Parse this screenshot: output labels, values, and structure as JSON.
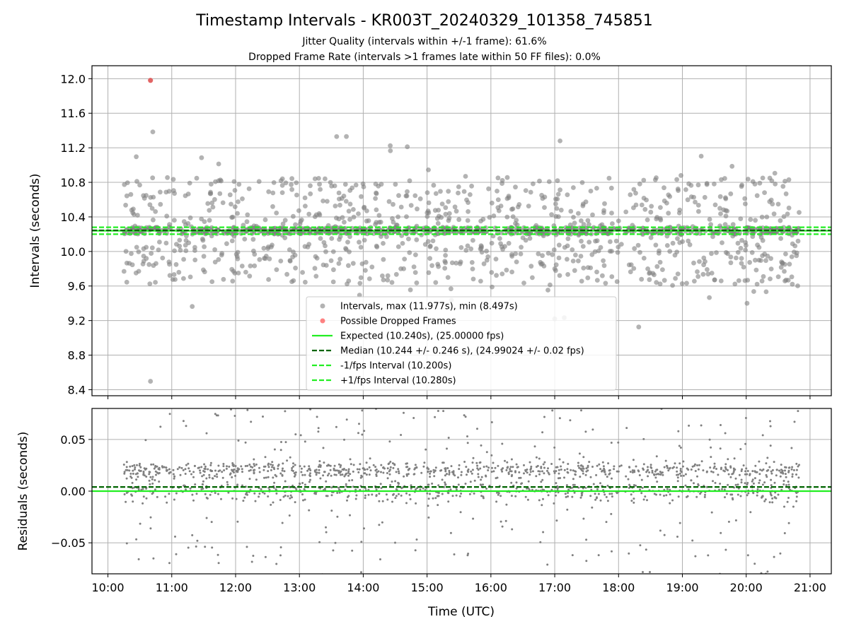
{
  "colors": {
    "intervals": "#808080",
    "dropped": "#ff3030",
    "expected": "#22ee22",
    "median": "#006400",
    "fps_bounds": "#22ee22",
    "grid": "#b0b0b0"
  },
  "chart_data": [
    {
      "type": "scatter",
      "title": "Timestamp Intervals - KR003T_20240329_101358_745851",
      "subtitle_lines": [
        "Jitter Quality (intervals within +/-1 frame): 61.6%",
        "Dropped Frame Rate (intervals >1 frames late within 50 FF files): 0.0%"
      ],
      "xlabel": "",
      "ylabel": "Intervals (seconds)",
      "x_range": [
        "09:45",
        "21:20"
      ],
      "ylim": [
        8.33,
        12.15
      ],
      "y_ticks": [
        "8.4",
        "8.8",
        "9.2",
        "9.6",
        "10.0",
        "10.4",
        "10.8",
        "11.2",
        "11.6",
        "12.0"
      ],
      "y_tick_values": [
        8.4,
        8.8,
        9.2,
        9.6,
        10.0,
        10.4,
        10.8,
        11.2,
        11.6,
        12.0
      ],
      "grid": true,
      "legend_position": "lower-center",
      "series": [
        {
          "name": "Intervals, max (11.977s), min (8.497s)",
          "kind": "points",
          "x_start": "10:15",
          "x_end": "20:50",
          "typical_center": 10.24,
          "typical_spread": 0.246,
          "count_approx": 1550
        },
        {
          "name": "Possible Dropped Frames",
          "kind": "points",
          "points": [
            {
              "x": "10:40",
              "y": 11.98
            }
          ]
        },
        {
          "name": "Expected (10.240s), (25.00000 fps)",
          "kind": "hline",
          "y": 10.24
        },
        {
          "name": "Median (10.244 +/- 0.246 s), (24.99024 +/- 0.02 fps)",
          "kind": "hline",
          "y": 10.244
        },
        {
          "name": "-1/fps Interval (10.200s)",
          "kind": "hline",
          "y": 10.2
        },
        {
          "name": "+1/fps Interval (10.280s)",
          "kind": "hline",
          "y": 10.28
        }
      ],
      "notable_points": [
        {
          "x": "10:40",
          "y": 11.98
        },
        {
          "x": "10:40",
          "y": 8.497
        },
        {
          "x": "13:35",
          "y": 11.33
        },
        {
          "x": "17:05",
          "y": 11.28
        },
        {
          "x": "17:00",
          "y": 9.22
        }
      ]
    },
    {
      "type": "scatter",
      "title": "",
      "xlabel": "Time (UTC)",
      "ylabel": "Residuals (seconds)",
      "x_range": [
        "09:45",
        "21:20"
      ],
      "x_ticks": [
        "10:00",
        "11:00",
        "12:00",
        "13:00",
        "14:00",
        "15:00",
        "16:00",
        "17:00",
        "18:00",
        "19:00",
        "20:00",
        "21:00"
      ],
      "ylim": [
        -0.08,
        0.08
      ],
      "y_ticks": [
        "−0.05",
        "0.00",
        "0.05"
      ],
      "y_tick_values": [
        -0.05,
        0.0,
        0.05
      ],
      "grid": true,
      "series": [
        {
          "kind": "points",
          "x_start": "10:15",
          "x_end": "20:50",
          "typical_center": 0.012,
          "count_approx": 1550
        },
        {
          "kind": "hline",
          "y": 0.0,
          "role": "expected"
        },
        {
          "kind": "hline",
          "y": 0.004,
          "role": "median"
        }
      ]
    }
  ]
}
